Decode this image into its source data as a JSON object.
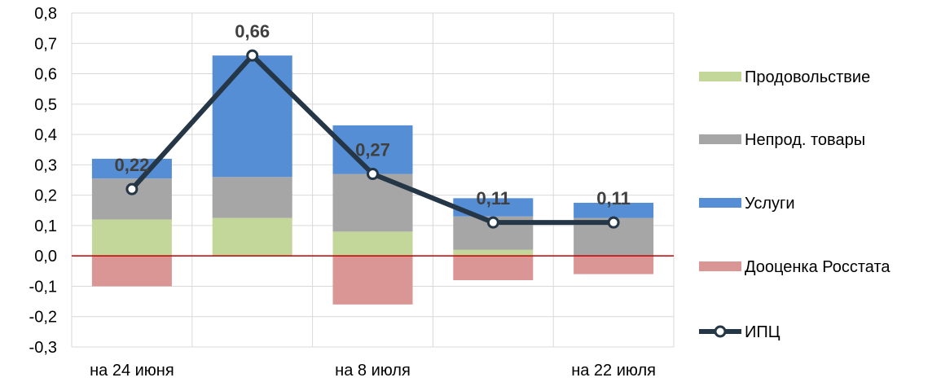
{
  "chart_data": {
    "type": "bar",
    "stacked": true,
    "categories": [
      "на 24 июня",
      "",
      "на 8 июля",
      "",
      "на 22 июля"
    ],
    "x_tick_labels": [
      "на 24 июня",
      "на 8 июля",
      "на 22 июля"
    ],
    "ylim": [
      -0.3,
      0.8
    ],
    "y_ticks": [
      "-0,3",
      "-0,2",
      "-0,1",
      "0,0",
      "0,1",
      "0,2",
      "0,3",
      "0,4",
      "0,5",
      "0,6",
      "0,7",
      "0,8"
    ],
    "grid": true,
    "legend_position": "right",
    "series": [
      {
        "name": "Продовольствие",
        "type": "bar",
        "color": "#c4d79b",
        "values": [
          0.12,
          0.125,
          0.08,
          0.02,
          0.0
        ]
      },
      {
        "name": "Непрод. товары",
        "type": "bar",
        "color": "#a6a6a6",
        "values": [
          0.135,
          0.135,
          0.19,
          0.11,
          0.125
        ]
      },
      {
        "name": "Услуги",
        "type": "bar",
        "color": "#558ed5",
        "values": [
          0.065,
          0.4,
          0.16,
          0.06,
          0.05
        ]
      },
      {
        "name": "Дооценка Росстата",
        "type": "bar",
        "color": "#da9694",
        "values": [
          -0.1,
          0.0,
          -0.16,
          -0.08,
          -0.06
        ]
      },
      {
        "name": "ИПЦ",
        "type": "line",
        "color": "#253746",
        "values": [
          0.22,
          0.66,
          0.27,
          0.11,
          0.11
        ],
        "labels": [
          "0,22",
          "0,66",
          "0,27",
          "0,11",
          "0,11"
        ]
      }
    ],
    "zero_line_color": "#c00000"
  }
}
